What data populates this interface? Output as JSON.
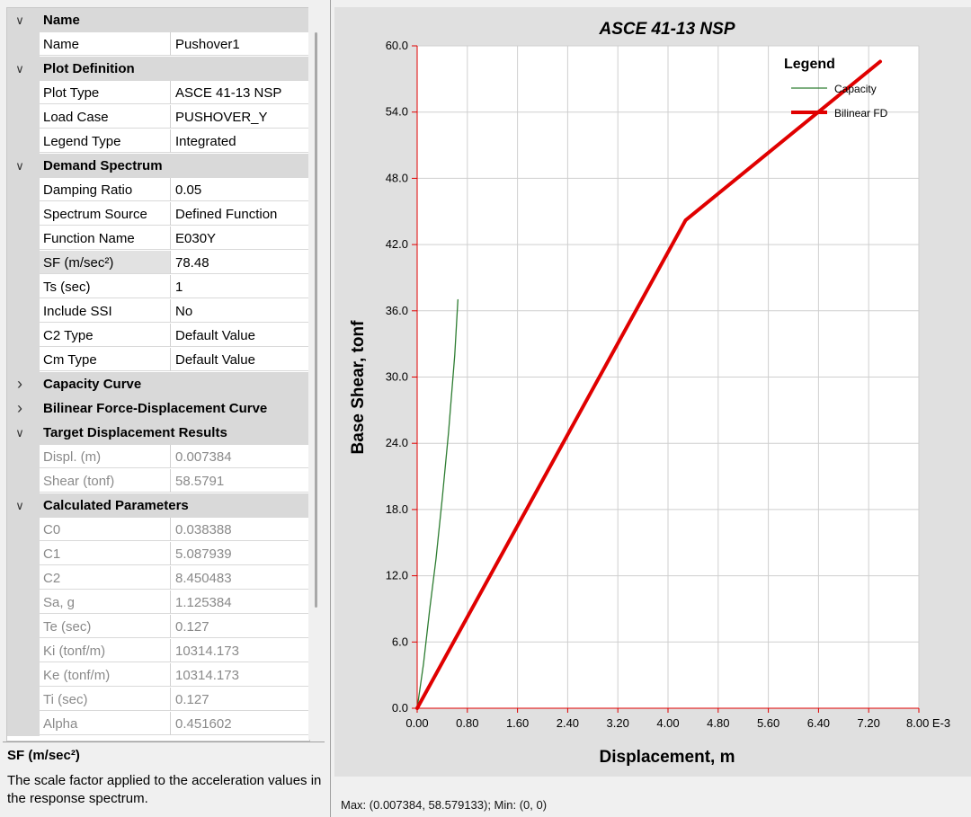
{
  "property_grid": {
    "rows": [
      {
        "type": "cat",
        "expanded": true,
        "label": "Name"
      },
      {
        "type": "prop",
        "name": "Name",
        "value": "Pushover1"
      },
      {
        "type": "cat",
        "expanded": true,
        "label": "Plot Definition"
      },
      {
        "type": "prop",
        "name": "Plot Type",
        "value": "ASCE 41-13 NSP"
      },
      {
        "type": "prop",
        "name": "Load Case",
        "value": "PUSHOVER_Y"
      },
      {
        "type": "prop",
        "name": "Legend Type",
        "value": "Integrated"
      },
      {
        "type": "cat",
        "expanded": true,
        "label": "Demand Spectrum"
      },
      {
        "type": "prop",
        "name": "Damping Ratio",
        "value": "0.05"
      },
      {
        "type": "prop",
        "name": "Spectrum Source",
        "value": "Defined Function"
      },
      {
        "type": "prop",
        "name": "Function Name",
        "value": "E030Y"
      },
      {
        "type": "prop",
        "name": "SF (m/sec²)",
        "value": "78.48",
        "selected": true
      },
      {
        "type": "prop",
        "name": "Ts (sec)",
        "value": "1"
      },
      {
        "type": "prop",
        "name": "Include SSI",
        "value": "No"
      },
      {
        "type": "prop",
        "name": "C2 Type",
        "value": "Default Value"
      },
      {
        "type": "prop",
        "name": "Cm Type",
        "value": "Default Value"
      },
      {
        "type": "cat",
        "expanded": false,
        "label": "Capacity Curve"
      },
      {
        "type": "cat",
        "expanded": false,
        "label": "Bilinear Force-Displacement Curve"
      },
      {
        "type": "cat",
        "expanded": true,
        "label": "Target Displacement Results"
      },
      {
        "type": "prop",
        "name": "Displ. (m)",
        "value": "0.007384",
        "readonly": true
      },
      {
        "type": "prop",
        "name": "Shear (tonf)",
        "value": "58.5791",
        "readonly": true
      },
      {
        "type": "cat",
        "expanded": true,
        "label": "Calculated Parameters"
      },
      {
        "type": "prop",
        "name": "C0",
        "value": "0.038388",
        "readonly": true
      },
      {
        "type": "prop",
        "name": "C1",
        "value": "5.087939",
        "readonly": true
      },
      {
        "type": "prop",
        "name": "C2",
        "value": "8.450483",
        "readonly": true
      },
      {
        "type": "prop",
        "name": "Sa, g",
        "value": "1.125384",
        "readonly": true
      },
      {
        "type": "prop",
        "name": "Te (sec)",
        "value": "0.127",
        "readonly": true
      },
      {
        "type": "prop",
        "name": "Ki (tonf/m)",
        "value": "10314.173",
        "readonly": true
      },
      {
        "type": "prop",
        "name": "Ke (tonf/m)",
        "value": "10314.173",
        "readonly": true
      },
      {
        "type": "prop",
        "name": "Ti (sec)",
        "value": "0.127",
        "readonly": true
      },
      {
        "type": "prop",
        "name": "Alpha",
        "value": "0.451602",
        "readonly": true
      }
    ],
    "icons": {
      "expanded": "chevron-down-icon",
      "collapsed": "chevron-right-icon"
    }
  },
  "description": {
    "title": "SF (m/sec²)",
    "text": "The scale factor applied to the acceleration values in the response spectrum."
  },
  "status_bar": {
    "text": "Max: (0.007384, 58.579133);   Min: (0, 0)"
  },
  "chart_data": {
    "type": "line",
    "title": "ASCE 41-13 NSP",
    "xlabel": "Displacement, m",
    "ylabel": "Base Shear, tonf",
    "xlim": [
      0,
      0.008
    ],
    "ylim": [
      0,
      60
    ],
    "x_ticks": [
      "0.00",
      "0.80",
      "1.60",
      "2.40",
      "3.20",
      "4.00",
      "4.80",
      "5.60",
      "6.40",
      "7.20",
      "8.00 E-3"
    ],
    "y_ticks": [
      "0.0",
      "6.0",
      "12.0",
      "18.0",
      "24.0",
      "30.0",
      "36.0",
      "42.0",
      "48.0",
      "54.0",
      "60.0"
    ],
    "grid": true,
    "legend": {
      "title": "Legend",
      "placement": "top-right"
    },
    "series": [
      {
        "name": "Capacity",
        "color": "#2e7d32",
        "x": [
          0,
          0.0001,
          0.0002,
          0.0003,
          0.0004,
          0.0005,
          0.0006,
          0.00065
        ],
        "y": [
          0,
          4,
          9,
          13.5,
          19,
          25,
          32,
          37
        ]
      },
      {
        "name": "Bilinear FD",
        "color": "#e00000",
        "x": [
          0,
          0.00428,
          0.007384
        ],
        "y": [
          0,
          44.2,
          58.5791
        ]
      }
    ]
  }
}
